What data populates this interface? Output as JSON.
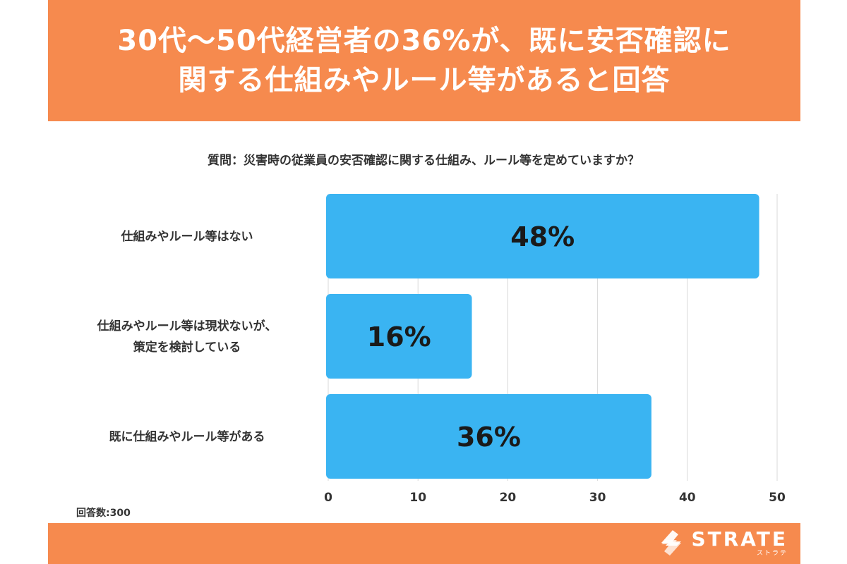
{
  "header": {
    "title_line1": "30代〜50代経営者の36%が、既に安否確認に",
    "title_line2": "関する仕組みやルール等があると回答"
  },
  "question": "質問：災害時の従業員の安否確認に関する仕組み、ルール等を定めていますか？",
  "respondents": "回答数:300",
  "footer": {
    "logo_text": "STRATE",
    "logo_sub": "ストラテ"
  },
  "colors": {
    "header_bg": "#f68a4e",
    "bar": "#3ab4f2",
    "grid": "#d9d9d9"
  },
  "chart_data": {
    "type": "bar",
    "orientation": "horizontal",
    "categories": [
      [
        "仕組みやルール等はない"
      ],
      [
        "仕組みやルール等は現状ないが、",
        "策定を検討している"
      ],
      [
        "既に仕組みやルール等がある"
      ]
    ],
    "values": [
      48,
      16,
      36
    ],
    "data_labels": [
      "48%",
      "16%",
      "36%"
    ],
    "x_ticks": [
      "0",
      "10",
      "20",
      "30",
      "40",
      "50"
    ],
    "xlim": [
      0,
      50
    ],
    "grid": true
  }
}
